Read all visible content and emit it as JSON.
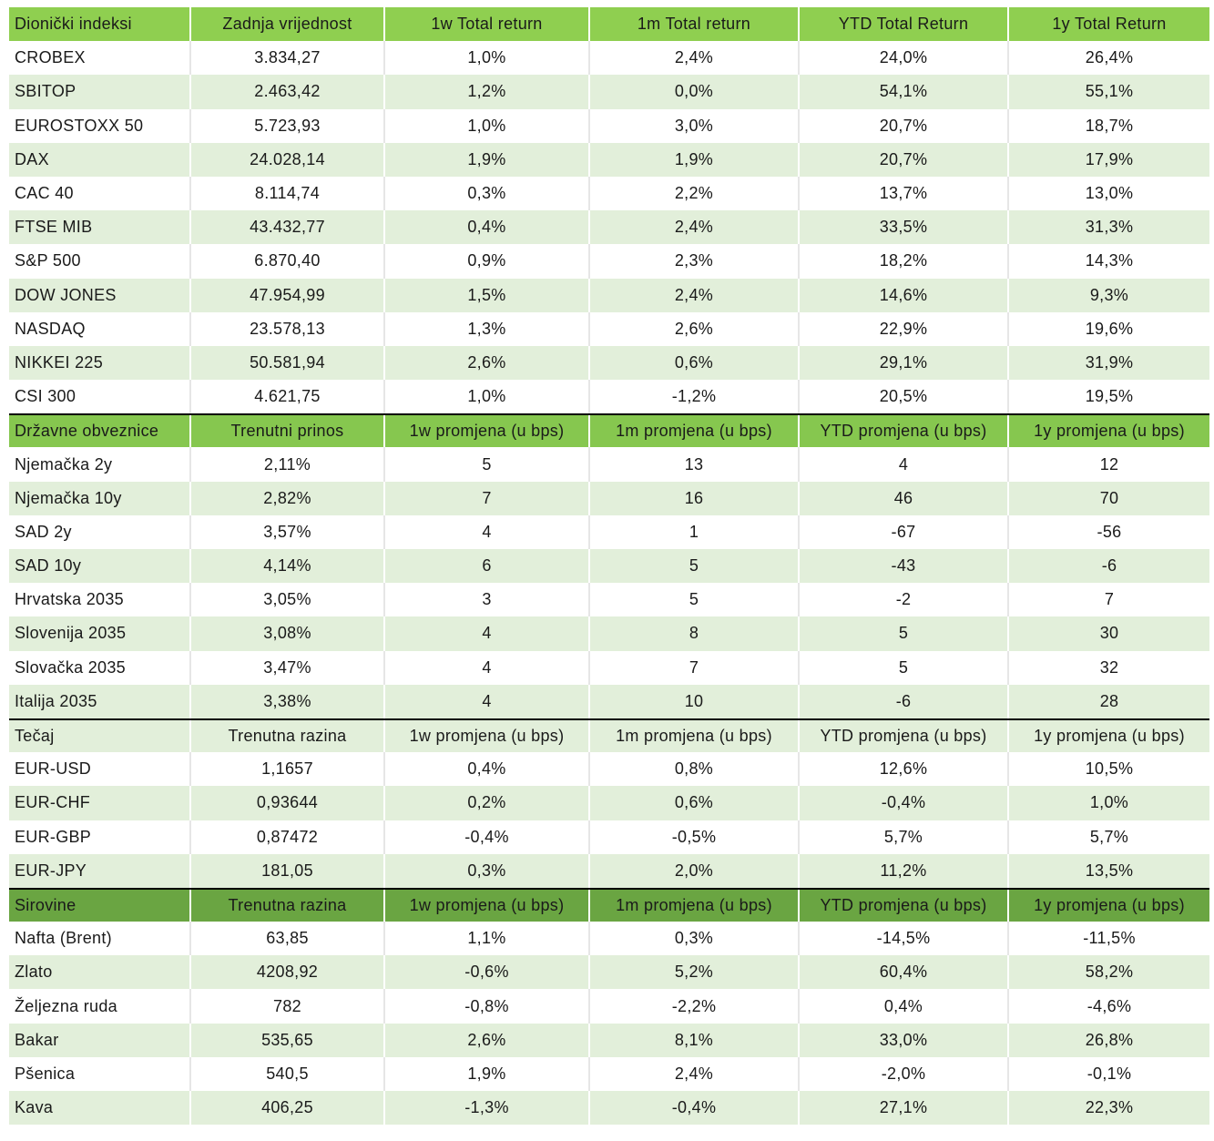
{
  "sections": [
    {
      "header": [
        "Dionički indeksi",
        "Zadnja vrijednost",
        "1w Total return",
        "1m Total return",
        "YTD Total Return",
        "1y Total Return"
      ],
      "rows": [
        [
          "CROBEX",
          "3.834,27",
          "1,0%",
          "2,4%",
          "24,0%",
          "26,4%"
        ],
        [
          "SBITOP",
          "2.463,42",
          "1,2%",
          "0,0%",
          "54,1%",
          "55,1%"
        ],
        [
          "EUROSTOXX 50",
          "5.723,93",
          "1,0%",
          "3,0%",
          "20,7%",
          "18,7%"
        ],
        [
          "DAX",
          "24.028,14",
          "1,9%",
          "1,9%",
          "20,7%",
          "17,9%"
        ],
        [
          "CAC 40",
          "8.114,74",
          "0,3%",
          "2,2%",
          "13,7%",
          "13,0%"
        ],
        [
          "FTSE MIB",
          "43.432,77",
          "0,4%",
          "2,4%",
          "33,5%",
          "31,3%"
        ],
        [
          "S&P 500",
          "6.870,40",
          "0,9%",
          "2,3%",
          "18,2%",
          "14,3%"
        ],
        [
          "DOW JONES",
          "47.954,99",
          "1,5%",
          "2,4%",
          "14,6%",
          "9,3%"
        ],
        [
          "NASDAQ",
          "23.578,13",
          "1,3%",
          "2,6%",
          "22,9%",
          "19,6%"
        ],
        [
          "NIKKEI 225",
          "50.581,94",
          "2,6%",
          "0,6%",
          "29,1%",
          "31,9%"
        ],
        [
          "CSI 300",
          "4.621,75",
          "1,0%",
          "-1,2%",
          "20,5%",
          "19,5%"
        ]
      ]
    },
    {
      "header": [
        "Državne obveznice",
        "Trenutni prinos",
        "1w promjena (u bps)",
        "1m promjena (u bps)",
        "YTD promjena (u bps)",
        "1y promjena (u bps)"
      ],
      "rows": [
        [
          "Njemačka 2y",
          "2,11%",
          "5",
          "13",
          "4",
          "12"
        ],
        [
          "Njemačka 10y",
          "2,82%",
          "7",
          "16",
          "46",
          "70"
        ],
        [
          "SAD 2y",
          "3,57%",
          "4",
          "1",
          "-67",
          "-56"
        ],
        [
          "SAD 10y",
          "4,14%",
          "6",
          "5",
          "-43",
          "-6"
        ],
        [
          "Hrvatska 2035",
          "3,05%",
          "3",
          "5",
          "-2",
          "7"
        ],
        [
          "Slovenija 2035",
          "3,08%",
          "4",
          "8",
          "5",
          "30"
        ],
        [
          "Slovačka 2035",
          "3,47%",
          "4",
          "7",
          "5",
          "32"
        ],
        [
          "Italija 2035",
          "3,38%",
          "4",
          "10",
          "-6",
          "28"
        ]
      ]
    },
    {
      "header": [
        "Tečaj",
        "Trenutna razina",
        "1w promjena (u bps)",
        "1m promjena (u bps)",
        "YTD promjena (u bps)",
        "1y promjena (u bps)"
      ],
      "rows": [
        [
          "EUR-USD",
          "1,1657",
          "0,4%",
          "0,8%",
          "12,6%",
          "10,5%"
        ],
        [
          "EUR-CHF",
          "0,93644",
          "0,2%",
          "0,6%",
          "-0,4%",
          "1,0%"
        ],
        [
          "EUR-GBP",
          "0,87472",
          "-0,4%",
          "-0,5%",
          "5,7%",
          "5,7%"
        ],
        [
          "EUR-JPY",
          "181,05",
          "0,3%",
          "2,0%",
          "11,2%",
          "13,5%"
        ]
      ]
    },
    {
      "header": [
        "Sirovine",
        "Trenutna razina",
        "1w promjena (u bps)",
        "1m promjena (u bps)",
        "YTD promjena (u bps)",
        "1y promjena (u bps)"
      ],
      "rows": [
        [
          "Nafta (Brent)",
          "63,85",
          "1,1%",
          "0,3%",
          "-14,5%",
          "-11,5%"
        ],
        [
          "Zlato",
          "4208,92",
          "-0,6%",
          "5,2%",
          "60,4%",
          "58,2%"
        ],
        [
          "Željezna ruda",
          "782",
          "-0,8%",
          "-2,2%",
          "0,4%",
          "-4,6%"
        ],
        [
          "Bakar",
          "535,65",
          "2,6%",
          "8,1%",
          "33,0%",
          "26,8%"
        ],
        [
          "Pšenica",
          "540,5",
          "1,9%",
          "2,4%",
          "-2,0%",
          "-0,1%"
        ],
        [
          "Kava",
          "406,25",
          "-1,3%",
          "-0,4%",
          "27,1%",
          "22,3%"
        ]
      ]
    }
  ]
}
